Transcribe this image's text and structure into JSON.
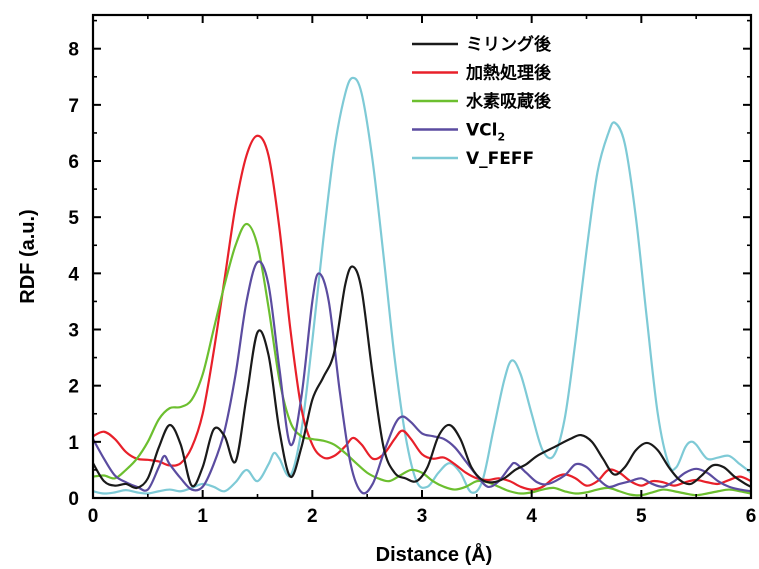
{
  "chart_data": {
    "type": "line",
    "xlabel": "Distance (Å)",
    "ylabel": "RDF (a.u.)",
    "xlim": [
      0,
      6
    ],
    "ylim": [
      0,
      8.6
    ],
    "x_ticks": [
      0,
      1,
      2,
      3,
      4,
      5,
      6
    ],
    "y_ticks": [
      0,
      1,
      2,
      3,
      4,
      5,
      6,
      7,
      8
    ],
    "grid": false,
    "legend_position": "top-right",
    "series": [
      {
        "name": "ミリング後",
        "color": "#1a1a1a",
        "points": [
          [
            0,
            0.62
          ],
          [
            0.1,
            0.3
          ],
          [
            0.2,
            0.22
          ],
          [
            0.3,
            0.25
          ],
          [
            0.4,
            0.18
          ],
          [
            0.5,
            0.35
          ],
          [
            0.6,
            0.9
          ],
          [
            0.7,
            1.3
          ],
          [
            0.8,
            0.95
          ],
          [
            0.9,
            0.22
          ],
          [
            1.0,
            0.55
          ],
          [
            1.1,
            1.22
          ],
          [
            1.2,
            1.1
          ],
          [
            1.3,
            0.65
          ],
          [
            1.4,
            1.8
          ],
          [
            1.5,
            2.95
          ],
          [
            1.6,
            2.55
          ],
          [
            1.7,
            1.2
          ],
          [
            1.8,
            0.38
          ],
          [
            1.9,
            0.9
          ],
          [
            2.0,
            1.75
          ],
          [
            2.1,
            2.15
          ],
          [
            2.2,
            2.6
          ],
          [
            2.3,
            3.8
          ],
          [
            2.37,
            4.12
          ],
          [
            2.45,
            3.7
          ],
          [
            2.55,
            2.2
          ],
          [
            2.65,
            0.9
          ],
          [
            2.75,
            0.45
          ],
          [
            2.85,
            0.35
          ],
          [
            2.95,
            0.3
          ],
          [
            3.05,
            0.55
          ],
          [
            3.15,
            1.1
          ],
          [
            3.25,
            1.3
          ],
          [
            3.35,
            1.05
          ],
          [
            3.45,
            0.55
          ],
          [
            3.55,
            0.32
          ],
          [
            3.65,
            0.28
          ],
          [
            3.75,
            0.35
          ],
          [
            3.85,
            0.5
          ],
          [
            3.95,
            0.6
          ],
          [
            4.05,
            0.75
          ],
          [
            4.2,
            0.9
          ],
          [
            4.35,
            1.05
          ],
          [
            4.45,
            1.12
          ],
          [
            4.55,
            1.0
          ],
          [
            4.65,
            0.7
          ],
          [
            4.75,
            0.42
          ],
          [
            4.85,
            0.55
          ],
          [
            4.95,
            0.85
          ],
          [
            5.05,
            0.98
          ],
          [
            5.15,
            0.85
          ],
          [
            5.25,
            0.55
          ],
          [
            5.35,
            0.32
          ],
          [
            5.45,
            0.25
          ],
          [
            5.55,
            0.4
          ],
          [
            5.65,
            0.58
          ],
          [
            5.75,
            0.55
          ],
          [
            5.85,
            0.38
          ],
          [
            5.95,
            0.25
          ],
          [
            6.0,
            0.2
          ]
        ]
      },
      {
        "name": "加熱処理後",
        "color": "#e8202a",
        "points": [
          [
            0,
            1.1
          ],
          [
            0.1,
            1.18
          ],
          [
            0.2,
            1.05
          ],
          [
            0.3,
            0.82
          ],
          [
            0.4,
            0.7
          ],
          [
            0.5,
            0.68
          ],
          [
            0.6,
            0.65
          ],
          [
            0.7,
            0.58
          ],
          [
            0.8,
            0.62
          ],
          [
            0.9,
            0.9
          ],
          [
            1.0,
            1.5
          ],
          [
            1.1,
            2.6
          ],
          [
            1.2,
            3.9
          ],
          [
            1.3,
            5.2
          ],
          [
            1.4,
            6.1
          ],
          [
            1.5,
            6.45
          ],
          [
            1.6,
            6.1
          ],
          [
            1.7,
            4.8
          ],
          [
            1.8,
            3.0
          ],
          [
            1.9,
            1.6
          ],
          [
            2.0,
            0.95
          ],
          [
            2.1,
            0.72
          ],
          [
            2.2,
            0.75
          ],
          [
            2.3,
            0.92
          ],
          [
            2.37,
            1.07
          ],
          [
            2.45,
            0.95
          ],
          [
            2.55,
            0.7
          ],
          [
            2.65,
            0.78
          ],
          [
            2.75,
            1.05
          ],
          [
            2.82,
            1.2
          ],
          [
            2.9,
            1.05
          ],
          [
            3.0,
            0.78
          ],
          [
            3.1,
            0.7
          ],
          [
            3.2,
            0.72
          ],
          [
            3.3,
            0.6
          ],
          [
            3.4,
            0.45
          ],
          [
            3.5,
            0.35
          ],
          [
            3.6,
            0.32
          ],
          [
            3.7,
            0.35
          ],
          [
            3.8,
            0.3
          ],
          [
            3.9,
            0.2
          ],
          [
            4.0,
            0.15
          ],
          [
            4.1,
            0.2
          ],
          [
            4.2,
            0.35
          ],
          [
            4.3,
            0.42
          ],
          [
            4.4,
            0.35
          ],
          [
            4.5,
            0.22
          ],
          [
            4.6,
            0.3
          ],
          [
            4.7,
            0.5
          ],
          [
            4.8,
            0.45
          ],
          [
            4.9,
            0.3
          ],
          [
            5.0,
            0.22
          ],
          [
            5.1,
            0.3
          ],
          [
            5.2,
            0.28
          ],
          [
            5.3,
            0.22
          ],
          [
            5.4,
            0.28
          ],
          [
            5.5,
            0.32
          ],
          [
            5.6,
            0.28
          ],
          [
            5.7,
            0.25
          ],
          [
            5.8,
            0.32
          ],
          [
            5.9,
            0.38
          ],
          [
            6.0,
            0.3
          ]
        ]
      },
      {
        "name": "水素吸蔵後",
        "color": "#6cbf2f",
        "points": [
          [
            0,
            0.38
          ],
          [
            0.1,
            0.4
          ],
          [
            0.2,
            0.35
          ],
          [
            0.3,
            0.5
          ],
          [
            0.4,
            0.7
          ],
          [
            0.5,
            1.0
          ],
          [
            0.6,
            1.4
          ],
          [
            0.7,
            1.6
          ],
          [
            0.8,
            1.62
          ],
          [
            0.9,
            1.75
          ],
          [
            1.0,
            2.2
          ],
          [
            1.1,
            3.0
          ],
          [
            1.2,
            3.8
          ],
          [
            1.3,
            4.5
          ],
          [
            1.4,
            4.88
          ],
          [
            1.5,
            4.5
          ],
          [
            1.6,
            3.4
          ],
          [
            1.7,
            2.1
          ],
          [
            1.8,
            1.35
          ],
          [
            1.9,
            1.1
          ],
          [
            2.0,
            1.05
          ],
          [
            2.1,
            1.02
          ],
          [
            2.2,
            0.95
          ],
          [
            2.3,
            0.8
          ],
          [
            2.4,
            0.62
          ],
          [
            2.5,
            0.45
          ],
          [
            2.6,
            0.35
          ],
          [
            2.7,
            0.3
          ],
          [
            2.8,
            0.4
          ],
          [
            2.9,
            0.5
          ],
          [
            3.0,
            0.45
          ],
          [
            3.1,
            0.3
          ],
          [
            3.2,
            0.2
          ],
          [
            3.3,
            0.15
          ],
          [
            3.4,
            0.2
          ],
          [
            3.5,
            0.3
          ],
          [
            3.6,
            0.28
          ],
          [
            3.7,
            0.2
          ],
          [
            3.8,
            0.12
          ],
          [
            3.9,
            0.08
          ],
          [
            4.0,
            0.1
          ],
          [
            4.1,
            0.15
          ],
          [
            4.2,
            0.18
          ],
          [
            4.3,
            0.12
          ],
          [
            4.4,
            0.08
          ],
          [
            4.5,
            0.1
          ],
          [
            4.6,
            0.15
          ],
          [
            4.7,
            0.18
          ],
          [
            4.8,
            0.12
          ],
          [
            4.9,
            0.06
          ],
          [
            5.0,
            0.05
          ],
          [
            5.1,
            0.1
          ],
          [
            5.2,
            0.15
          ],
          [
            5.3,
            0.12
          ],
          [
            5.4,
            0.08
          ],
          [
            5.5,
            0.05
          ],
          [
            5.6,
            0.08
          ],
          [
            5.7,
            0.12
          ],
          [
            5.8,
            0.15
          ],
          [
            5.9,
            0.12
          ],
          [
            6.0,
            0.08
          ]
        ]
      },
      {
        "name": "VCl2",
        "display_name_main": "VCl",
        "display_name_sub": "2",
        "color": "#5b4ca0",
        "points": [
          [
            0,
            1.05
          ],
          [
            0.1,
            0.7
          ],
          [
            0.2,
            0.4
          ],
          [
            0.3,
            0.28
          ],
          [
            0.4,
            0.2
          ],
          [
            0.5,
            0.15
          ],
          [
            0.6,
            0.55
          ],
          [
            0.65,
            0.75
          ],
          [
            0.7,
            0.6
          ],
          [
            0.8,
            0.35
          ],
          [
            0.9,
            0.15
          ],
          [
            1.0,
            0.2
          ],
          [
            1.1,
            0.6
          ],
          [
            1.2,
            1.2
          ],
          [
            1.3,
            2.2
          ],
          [
            1.4,
            3.5
          ],
          [
            1.5,
            4.2
          ],
          [
            1.6,
            3.8
          ],
          [
            1.7,
            2.3
          ],
          [
            1.8,
            0.95
          ],
          [
            1.9,
            1.8
          ],
          [
            2.0,
            3.5
          ],
          [
            2.06,
            4.0
          ],
          [
            2.15,
            3.5
          ],
          [
            2.25,
            1.9
          ],
          [
            2.35,
            0.6
          ],
          [
            2.45,
            0.1
          ],
          [
            2.55,
            0.25
          ],
          [
            2.65,
            0.8
          ],
          [
            2.75,
            1.3
          ],
          [
            2.82,
            1.45
          ],
          [
            2.9,
            1.35
          ],
          [
            3.0,
            1.15
          ],
          [
            3.1,
            1.1
          ],
          [
            3.2,
            1.05
          ],
          [
            3.3,
            0.9
          ],
          [
            3.4,
            0.65
          ],
          [
            3.5,
            0.4
          ],
          [
            3.6,
            0.2
          ],
          [
            3.7,
            0.3
          ],
          [
            3.8,
            0.55
          ],
          [
            3.85,
            0.62
          ],
          [
            3.95,
            0.45
          ],
          [
            4.05,
            0.28
          ],
          [
            4.15,
            0.25
          ],
          [
            4.3,
            0.4
          ],
          [
            4.4,
            0.6
          ],
          [
            4.5,
            0.55
          ],
          [
            4.6,
            0.35
          ],
          [
            4.7,
            0.2
          ],
          [
            4.8,
            0.25
          ],
          [
            4.9,
            0.3
          ],
          [
            5.0,
            0.35
          ],
          [
            5.1,
            0.25
          ],
          [
            5.2,
            0.2
          ],
          [
            5.3,
            0.3
          ],
          [
            5.4,
            0.45
          ],
          [
            5.5,
            0.52
          ],
          [
            5.6,
            0.45
          ],
          [
            5.7,
            0.3
          ],
          [
            5.8,
            0.2
          ],
          [
            5.9,
            0.15
          ],
          [
            6.0,
            0.12
          ]
        ]
      },
      {
        "name": "V_FEFF",
        "color": "#7ecad6",
        "points": [
          [
            0,
            0.12
          ],
          [
            0.1,
            0.08
          ],
          [
            0.2,
            0.1
          ],
          [
            0.3,
            0.14
          ],
          [
            0.4,
            0.1
          ],
          [
            0.5,
            0.08
          ],
          [
            0.6,
            0.12
          ],
          [
            0.7,
            0.15
          ],
          [
            0.8,
            0.12
          ],
          [
            0.9,
            0.18
          ],
          [
            1.0,
            0.25
          ],
          [
            1.1,
            0.2
          ],
          [
            1.2,
            0.12
          ],
          [
            1.3,
            0.28
          ],
          [
            1.4,
            0.5
          ],
          [
            1.5,
            0.3
          ],
          [
            1.6,
            0.6
          ],
          [
            1.65,
            0.8
          ],
          [
            1.7,
            0.7
          ],
          [
            1.8,
            0.4
          ],
          [
            1.9,
            1.2
          ],
          [
            2.0,
            2.8
          ],
          [
            2.1,
            4.6
          ],
          [
            2.2,
            6.2
          ],
          [
            2.3,
            7.2
          ],
          [
            2.37,
            7.48
          ],
          [
            2.45,
            7.2
          ],
          [
            2.55,
            6.0
          ],
          [
            2.65,
            4.3
          ],
          [
            2.75,
            2.5
          ],
          [
            2.85,
            1.1
          ],
          [
            2.95,
            0.3
          ],
          [
            3.05,
            0.2
          ],
          [
            3.15,
            0.45
          ],
          [
            3.25,
            0.62
          ],
          [
            3.35,
            0.45
          ],
          [
            3.45,
            0.1
          ],
          [
            3.55,
            0.3
          ],
          [
            3.65,
            1.2
          ],
          [
            3.75,
            2.1
          ],
          [
            3.82,
            2.45
          ],
          [
            3.9,
            2.2
          ],
          [
            4.0,
            1.5
          ],
          [
            4.1,
            0.85
          ],
          [
            4.2,
            0.75
          ],
          [
            4.3,
            1.4
          ],
          [
            4.4,
            2.8
          ],
          [
            4.5,
            4.4
          ],
          [
            4.6,
            5.8
          ],
          [
            4.7,
            6.5
          ],
          [
            4.76,
            6.68
          ],
          [
            4.85,
            6.3
          ],
          [
            4.95,
            5.0
          ],
          [
            5.05,
            3.2
          ],
          [
            5.15,
            1.5
          ],
          [
            5.25,
            0.6
          ],
          [
            5.32,
            0.55
          ],
          [
            5.4,
            0.9
          ],
          [
            5.45,
            1.0
          ],
          [
            5.5,
            0.95
          ],
          [
            5.6,
            0.7
          ],
          [
            5.7,
            0.72
          ],
          [
            5.8,
            0.75
          ],
          [
            5.9,
            0.6
          ],
          [
            6.0,
            0.45
          ]
        ]
      }
    ]
  }
}
